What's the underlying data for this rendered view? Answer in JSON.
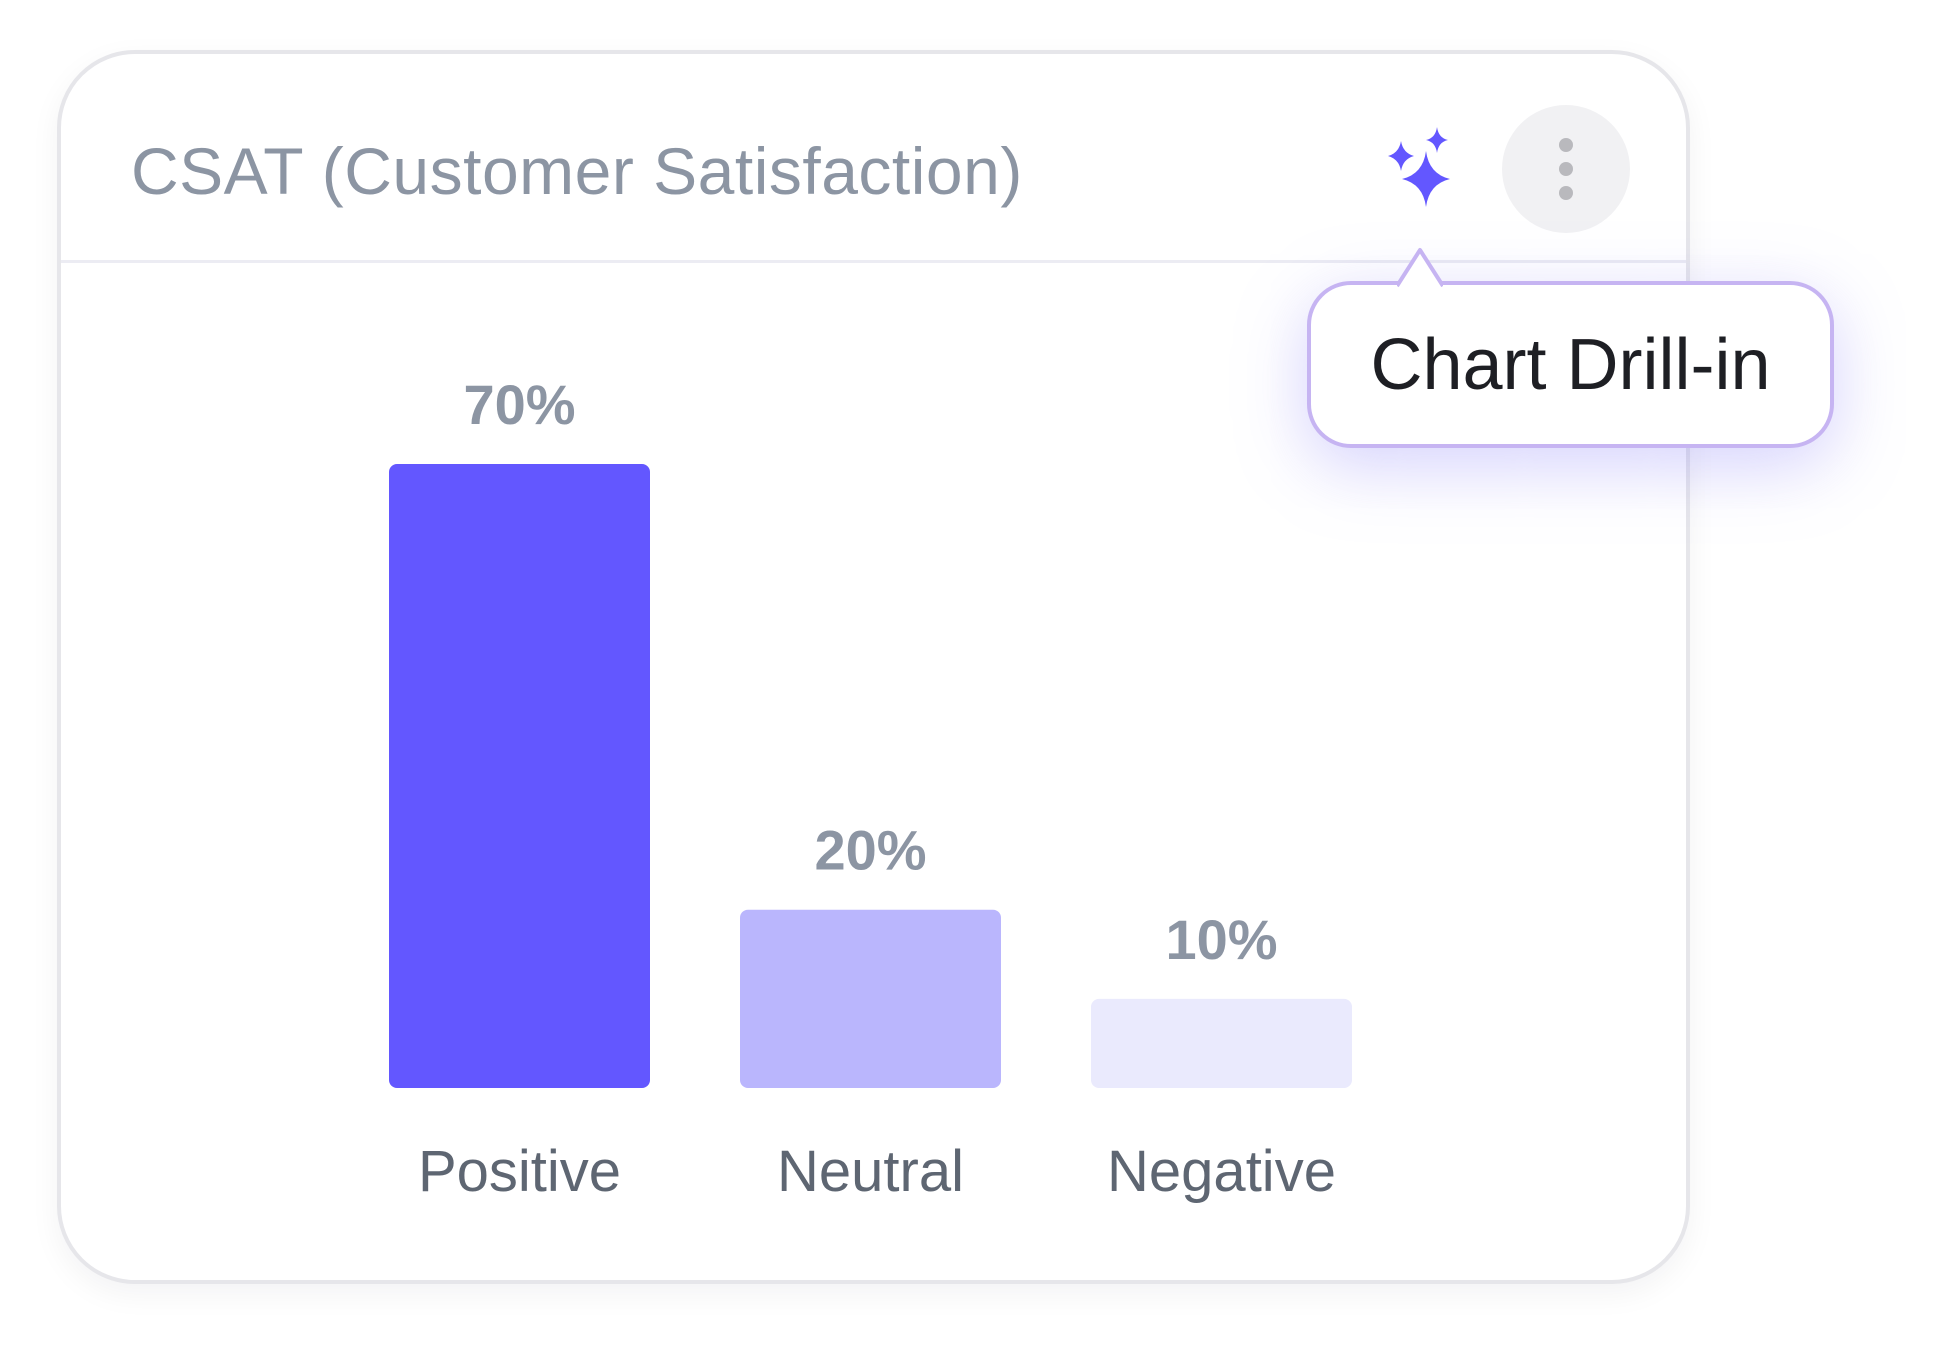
{
  "card": {
    "title": "CSAT (Customer Satisfaction)"
  },
  "actions": {
    "drill_in_icon": "sparkles-icon",
    "menu_icon": "more-vertical-icon"
  },
  "tooltip": {
    "text": "Chart Drill-in"
  },
  "colors": {
    "accent": "#6357ff",
    "neutral_bar": "#bab6fd",
    "negative_bar": "#eaeafd",
    "tooltip_border": "#c6b4f2",
    "title_text": "#8c95a3"
  },
  "chart_data": {
    "type": "bar",
    "categories": [
      "Positive",
      "Neutral",
      "Negative"
    ],
    "values": [
      70,
      20,
      10
    ],
    "value_labels": [
      "70%",
      "20%",
      "10%"
    ],
    "unit": "%",
    "ylim": [
      0,
      70
    ],
    "grid": false,
    "legend": "none",
    "bar_colors": [
      "#6357ff",
      "#bab6fd",
      "#eaeafd"
    ]
  }
}
